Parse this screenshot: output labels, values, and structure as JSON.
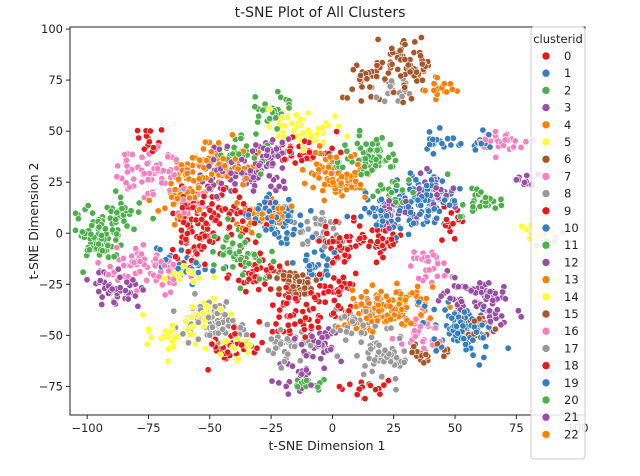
{
  "chart_data": {
    "type": "scatter",
    "title": "t-SNE Plot of All Clusters",
    "xlabel": "t-SNE Dimension 1",
    "ylabel": "t-SNE Dimension 2",
    "xlim": [
      -107,
      103
    ],
    "ylim": [
      -89,
      101
    ],
    "x_ticks": [
      -100,
      -75,
      -50,
      -25,
      0,
      25,
      50,
      75,
      100
    ],
    "x_tick_labels": [
      "−100",
      "−75",
      "−50",
      "−25",
      "0",
      "25",
      "50",
      "75",
      "100"
    ],
    "y_ticks": [
      -75,
      -50,
      -25,
      0,
      25,
      50,
      75,
      100
    ],
    "y_tick_labels": [
      "−75",
      "−50",
      "−25",
      "0",
      "25",
      "50",
      "75",
      "100"
    ],
    "grid": false,
    "legend_placement": "right",
    "legend_title": "clusterid",
    "series": [
      {
        "name": "0",
        "color": "#e41a1c",
        "regions": [
          [
            -55,
            10,
            10,
            12
          ],
          [
            -30,
            -20,
            10,
            10
          ],
          [
            5,
            -5,
            10,
            12
          ],
          [
            -10,
            40,
            10,
            8
          ],
          [
            -40,
            -55,
            10,
            8
          ]
        ]
      },
      {
        "name": "1",
        "color": "#377eb8",
        "regions": [
          [
            25,
            10,
            14,
            10
          ],
          [
            55,
            -50,
            10,
            12
          ],
          [
            -60,
            -15,
            10,
            8
          ],
          [
            40,
            45,
            8,
            5
          ]
        ]
      },
      {
        "name": "2",
        "color": "#4daf4a",
        "regions": [
          [
            -95,
            0,
            8,
            12
          ],
          [
            -40,
            -5,
            8,
            8
          ],
          [
            60,
            15,
            8,
            8
          ],
          [
            15,
            35,
            10,
            8
          ],
          [
            -25,
            60,
            8,
            8
          ]
        ]
      },
      {
        "name": "3",
        "color": "#984ea3",
        "regions": [
          [
            -30,
            30,
            12,
            10
          ],
          [
            -85,
            -30,
            8,
            8
          ],
          [
            65,
            -35,
            10,
            10
          ],
          [
            80,
            25,
            5,
            5
          ]
        ]
      },
      {
        "name": "4",
        "color": "#ff7f00",
        "regions": [
          [
            -45,
            35,
            12,
            10
          ],
          [
            20,
            -35,
            15,
            10
          ],
          [
            -60,
            20,
            10,
            10
          ],
          [
            45,
            70,
            6,
            6
          ]
        ]
      },
      {
        "name": "5",
        "color": "#ffff33",
        "regions": [
          [
            -10,
            50,
            10,
            8
          ],
          [
            -65,
            -50,
            10,
            8
          ],
          [
            -50,
            -40,
            8,
            8
          ],
          [
            85,
            0,
            6,
            6
          ]
        ]
      },
      {
        "name": "6",
        "color": "#a65628",
        "regions": [
          [
            20,
            75,
            12,
            10
          ],
          [
            30,
            90,
            8,
            6
          ],
          [
            -15,
            -25,
            6,
            8
          ],
          [
            40,
            -60,
            8,
            6
          ]
        ]
      },
      {
        "name": "7",
        "color": "#f781bf",
        "regions": [
          [
            -75,
            30,
            12,
            12
          ],
          [
            -80,
            -15,
            10,
            10
          ],
          [
            70,
            45,
            10,
            6
          ],
          [
            40,
            -15,
            8,
            8
          ]
        ]
      },
      {
        "name": "8",
        "color": "#999999",
        "regions": [
          [
            -45,
            -45,
            14,
            8
          ],
          [
            20,
            -60,
            12,
            10
          ],
          [
            25,
            70,
            8,
            6
          ],
          [
            -20,
            -55,
            10,
            8
          ]
        ]
      },
      {
        "name": "9",
        "color": "#e41a1c",
        "regions": [
          [
            -40,
            10,
            10,
            10
          ],
          [
            0,
            -30,
            10,
            10
          ],
          [
            15,
            -75,
            8,
            5
          ],
          [
            -75,
            45,
            6,
            6
          ]
        ]
      },
      {
        "name": "10",
        "color": "#377eb8",
        "regions": [
          [
            -20,
            5,
            10,
            10
          ],
          [
            40,
            15,
            10,
            10
          ],
          [
            -5,
            -15,
            8,
            8
          ]
        ]
      },
      {
        "name": "11",
        "color": "#4daf4a",
        "regions": [
          [
            -85,
            10,
            8,
            8
          ],
          [
            -35,
            -15,
            8,
            8
          ],
          [
            15,
            40,
            8,
            8
          ]
        ]
      },
      {
        "name": "12",
        "color": "#984ea3",
        "regions": [
          [
            -25,
            40,
            10,
            8
          ],
          [
            25,
            10,
            8,
            8
          ],
          [
            -15,
            -70,
            10,
            6
          ],
          [
            55,
            -30,
            10,
            8
          ]
        ]
      },
      {
        "name": "13",
        "color": "#ff7f00",
        "regions": [
          [
            -30,
            10,
            10,
            8
          ],
          [
            5,
            25,
            10,
            8
          ],
          [
            30,
            -35,
            10,
            8
          ]
        ]
      },
      {
        "name": "14",
        "color": "#ffff33",
        "regions": [
          [
            -60,
            -20,
            8,
            6
          ],
          [
            -40,
            -55,
            8,
            6
          ],
          [
            -20,
            55,
            8,
            6
          ]
        ]
      },
      {
        "name": "15",
        "color": "#a65628",
        "regions": [
          [
            -15,
            -25,
            8,
            8
          ],
          [
            35,
            80,
            8,
            8
          ],
          [
            60,
            -45,
            6,
            6
          ]
        ]
      },
      {
        "name": "16",
        "color": "#f781bf",
        "regions": [
          [
            -70,
            -20,
            8,
            8
          ],
          [
            -60,
            15,
            8,
            8
          ],
          [
            35,
            -50,
            8,
            8
          ]
        ]
      },
      {
        "name": "17",
        "color": "#999999",
        "regions": [
          [
            -50,
            -40,
            10,
            8
          ],
          [
            10,
            -45,
            10,
            8
          ],
          [
            -5,
            0,
            8,
            8
          ],
          [
            90,
            -2,
            6,
            4
          ]
        ]
      },
      {
        "name": "18",
        "color": "#e41a1c",
        "regions": [
          [
            -55,
            -5,
            10,
            10
          ],
          [
            -15,
            -40,
            10,
            10
          ],
          [
            20,
            -5,
            8,
            8
          ],
          [
            50,
            5,
            6,
            6
          ]
        ]
      },
      {
        "name": "19",
        "color": "#377eb8",
        "regions": [
          [
            40,
            20,
            10,
            10
          ],
          [
            50,
            -45,
            10,
            10
          ],
          [
            -25,
            10,
            8,
            8
          ],
          [
            60,
            45,
            6,
            5
          ]
        ]
      },
      {
        "name": "20",
        "color": "#4daf4a",
        "regions": [
          [
            -95,
            -5,
            8,
            10
          ],
          [
            -35,
            40,
            8,
            8
          ],
          [
            25,
            20,
            8,
            8
          ],
          [
            -10,
            -75,
            6,
            5
          ]
        ]
      },
      {
        "name": "21",
        "color": "#984ea3",
        "regions": [
          [
            -45,
            30,
            10,
            10
          ],
          [
            -90,
            -25,
            8,
            8
          ],
          [
            -5,
            -55,
            10,
            8
          ],
          [
            40,
            20,
            8,
            8
          ]
        ]
      },
      {
        "name": "22",
        "color": "#ff7f00",
        "regions": [
          [
            0,
            30,
            12,
            10
          ],
          [
            15,
            -40,
            12,
            8
          ],
          [
            -60,
            30,
            8,
            8
          ]
        ]
      }
    ]
  }
}
